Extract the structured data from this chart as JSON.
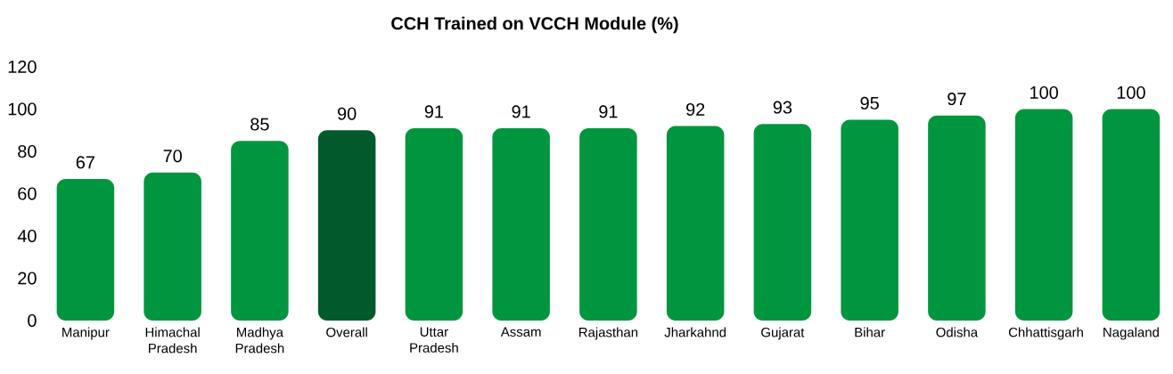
{
  "chart_data": {
    "type": "bar",
    "title": "CCH Trained on VCCH Module (%)",
    "categories": [
      "Manipur",
      "Himachal Pradesh",
      "Madhya Pradesh",
      "Overall",
      "Uttar Pradesh",
      "Assam",
      "Rajasthan",
      "Jharkahnd",
      "Gujarat",
      "Bihar",
      "Odisha",
      "Chhattisgarh",
      "Nagaland"
    ],
    "values": [
      67,
      70,
      85,
      90,
      91,
      91,
      91,
      92,
      93,
      95,
      97,
      100,
      100
    ],
    "colors": [
      "#00963f",
      "#00963f",
      "#00963f",
      "#005a2b",
      "#00963f",
      "#00963f",
      "#00963f",
      "#00963f",
      "#00963f",
      "#00963f",
      "#00963f",
      "#00963f",
      "#00963f"
    ],
    "ylim": [
      0,
      120
    ],
    "yticks": [
      0,
      20,
      40,
      60,
      80,
      100,
      120
    ],
    "data_labels": true,
    "grid": false
  }
}
